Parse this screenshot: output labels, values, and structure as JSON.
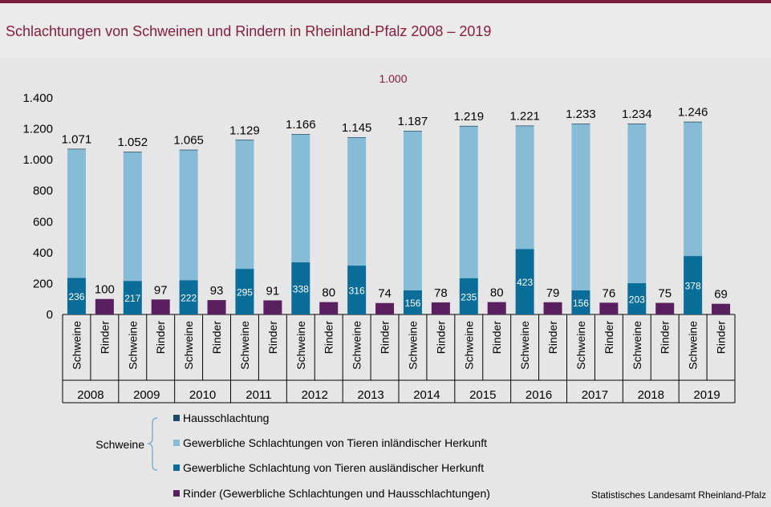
{
  "title": "Schlachtungen von Schweinen und Rindern in Rheinland-Pfalz 2008 – 2019",
  "unit_label": "1.000",
  "source": "Statistisches Landesamt Rheinland-Pfalz",
  "colors": {
    "hausschlachtung": "#1a4a66",
    "inlaendisch": "#86bcd6",
    "auslaendisch": "#0b6e9a",
    "rinder": "#5a1f5e",
    "title": "#8b1c3e"
  },
  "legend": {
    "group_label": "Schweine",
    "items": [
      {
        "key": "hausschlachtung",
        "label": "Hausschlachtung"
      },
      {
        "key": "inlaendisch",
        "label": "Gewerbliche Schlachtungen von Tieren inländischer Herkunft"
      },
      {
        "key": "auslaendisch",
        "label": "Gewerbliche Schlachtung von Tieren ausländischer Herkunft"
      },
      {
        "key": "rinder",
        "label": "Rinder (Gewerbliche Schlachtungen und Hausschlachtungen)"
      }
    ]
  },
  "chart_data": {
    "type": "bar",
    "stacked": true,
    "categories": [
      "2008",
      "2009",
      "2010",
      "2011",
      "2012",
      "2013",
      "2014",
      "2015",
      "2016",
      "2017",
      "2018",
      "2019"
    ],
    "bar_labels": [
      "Schweine",
      "Rinder"
    ],
    "ylim": [
      0,
      1400
    ],
    "yticks": [
      0,
      200,
      400,
      600,
      800,
      1000,
      1200,
      1400
    ],
    "ytick_labels": [
      "0",
      "200",
      "400",
      "600",
      "800",
      "1.000",
      "1.200",
      "1.400"
    ],
    "schweine_total": [
      1071,
      1052,
      1065,
      1129,
      1166,
      1145,
      1187,
      1219,
      1221,
      1233,
      1234,
      1246
    ],
    "schweine_total_labels": [
      "1.071",
      "1.052",
      "1.065",
      "1.129",
      "1.166",
      "1.145",
      "1.187",
      "1.219",
      "1.221",
      "1.233",
      "1.234",
      "1.246"
    ],
    "series": [
      {
        "key": "auslaendisch",
        "values": [
          236,
          217,
          222,
          295,
          338,
          316,
          156,
          235,
          423,
          156,
          203,
          378
        ]
      },
      {
        "key": "inlaendisch",
        "values": [
          831,
          831,
          839,
          830,
          824,
          825,
          1027,
          980,
          794,
          1073,
          1027,
          864
        ]
      },
      {
        "key": "hausschlachtung",
        "values": [
          4,
          4,
          4,
          4,
          4,
          4,
          4,
          4,
          4,
          4,
          4,
          4
        ]
      }
    ],
    "rinder": [
      100,
      97,
      93,
      91,
      80,
      74,
      78,
      80,
      79,
      76,
      75,
      69
    ]
  }
}
